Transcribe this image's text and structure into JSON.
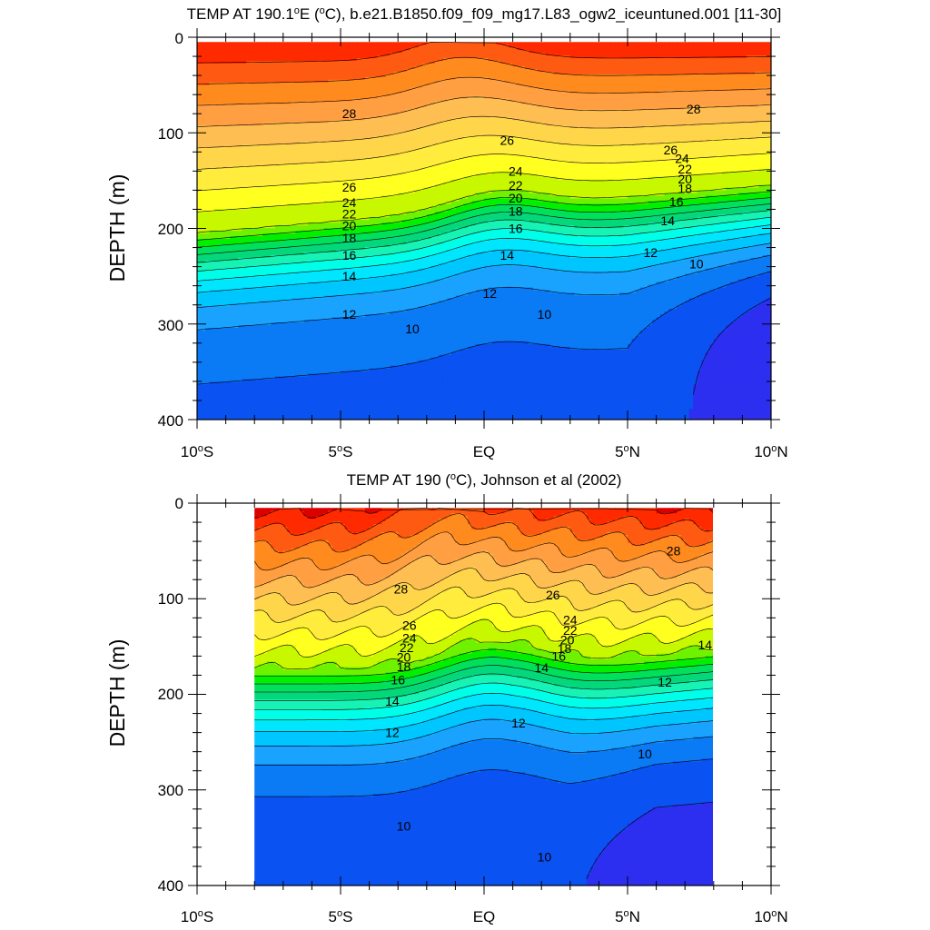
{
  "chart_data": [
    {
      "type": "contour",
      "panel": "model",
      "title_prefix": "TEMP AT 190.1",
      "title_sup": "o",
      "title_mid": "E (",
      "title_unit_sup": "o",
      "title_suffix": "C), b.e21.B1850.f09_f09_mg17.L83_ogw2_iceuntuned.001 [11-30]",
      "ylabel": "DEPTH (m)",
      "xlabel": "",
      "xlim": [
        -10,
        10
      ],
      "ylim": [
        400,
        0
      ],
      "x_ticks": [
        {
          "value": -10,
          "num": "10",
          "hemi": "S"
        },
        {
          "value": -5,
          "num": "5",
          "hemi": "S"
        },
        {
          "value": 0,
          "num": "EQ",
          "hemi": ""
        },
        {
          "value": 5,
          "num": "5",
          "hemi": "N"
        },
        {
          "value": 10,
          "num": "10",
          "hemi": "N"
        }
      ],
      "y_ticks": [
        0,
        100,
        200,
        300,
        400
      ],
      "x_data_range": [
        -10,
        10
      ],
      "y_data_range": [
        5,
        400
      ],
      "contour_interval": 1,
      "contour_labels": [
        {
          "text": "28",
          "x": -4.7,
          "y": 80
        },
        {
          "text": "26",
          "x": -4.7,
          "y": 157
        },
        {
          "text": "24",
          "x": -4.7,
          "y": 173
        },
        {
          "text": "22",
          "x": -4.7,
          "y": 185
        },
        {
          "text": "20",
          "x": -4.7,
          "y": 197
        },
        {
          "text": "18",
          "x": -4.7,
          "y": 210
        },
        {
          "text": "16",
          "x": -4.7,
          "y": 228
        },
        {
          "text": "14",
          "x": -4.7,
          "y": 250
        },
        {
          "text": "12",
          "x": -4.7,
          "y": 290
        },
        {
          "text": "10",
          "x": -2.5,
          "y": 305
        },
        {
          "text": "26",
          "x": 0.8,
          "y": 108
        },
        {
          "text": "24",
          "x": 1.1,
          "y": 140
        },
        {
          "text": "22",
          "x": 1.1,
          "y": 155
        },
        {
          "text": "20",
          "x": 1.1,
          "y": 168
        },
        {
          "text": "18",
          "x": 1.1,
          "y": 182
        },
        {
          "text": "16",
          "x": 1.1,
          "y": 200
        },
        {
          "text": "14",
          "x": 0.8,
          "y": 228
        },
        {
          "text": "12",
          "x": 0.2,
          "y": 268
        },
        {
          "text": "10",
          "x": 2.1,
          "y": 290
        },
        {
          "text": "28",
          "x": 7.3,
          "y": 75
        },
        {
          "text": "26",
          "x": 6.5,
          "y": 118
        },
        {
          "text": "24",
          "x": 6.9,
          "y": 127
        },
        {
          "text": "22",
          "x": 7.0,
          "y": 138
        },
        {
          "text": "20",
          "x": 7.0,
          "y": 148
        },
        {
          "text": "18",
          "x": 7.0,
          "y": 158
        },
        {
          "text": "16",
          "x": 6.7,
          "y": 172
        },
        {
          "text": "14",
          "x": 6.4,
          "y": 192
        },
        {
          "text": "12",
          "x": 5.8,
          "y": 225
        },
        {
          "text": "10",
          "x": 7.4,
          "y": 237
        }
      ]
    },
    {
      "type": "contour",
      "panel": "observations",
      "title_prefix": "TEMP AT 190 (",
      "title_sup": "o",
      "title_suffix": "C), Johnson et al (2002)",
      "ylabel": "DEPTH (m)",
      "xlabel": "",
      "xlim": [
        -10,
        10
      ],
      "ylim": [
        400,
        0
      ],
      "x_ticks": [
        {
          "value": -10,
          "num": "10",
          "hemi": "S"
        },
        {
          "value": -5,
          "num": "5",
          "hemi": "S"
        },
        {
          "value": 0,
          "num": "EQ",
          "hemi": ""
        },
        {
          "value": 5,
          "num": "5",
          "hemi": "N"
        },
        {
          "value": 10,
          "num": "10",
          "hemi": "N"
        }
      ],
      "y_ticks": [
        0,
        100,
        200,
        300,
        400
      ],
      "x_data_range": [
        -8,
        8
      ],
      "y_data_range": [
        5,
        400
      ],
      "contour_interval": 1,
      "contour_labels": [
        {
          "text": "28",
          "x": -2.9,
          "y": 90
        },
        {
          "text": "26",
          "x": -2.6,
          "y": 128
        },
        {
          "text": "24",
          "x": -2.6,
          "y": 141
        },
        {
          "text": "22",
          "x": -2.7,
          "y": 151
        },
        {
          "text": "20",
          "x": -2.8,
          "y": 161
        },
        {
          "text": "18",
          "x": -2.8,
          "y": 171
        },
        {
          "text": "16",
          "x": -3.0,
          "y": 185
        },
        {
          "text": "14",
          "x": -3.2,
          "y": 207
        },
        {
          "text": "12",
          "x": -3.2,
          "y": 240
        },
        {
          "text": "10",
          "x": -2.8,
          "y": 338
        },
        {
          "text": "26",
          "x": 2.4,
          "y": 96
        },
        {
          "text": "24",
          "x": 3.0,
          "y": 122
        },
        {
          "text": "22",
          "x": 3.0,
          "y": 133
        },
        {
          "text": "20",
          "x": 2.9,
          "y": 143
        },
        {
          "text": "18",
          "x": 2.8,
          "y": 152
        },
        {
          "text": "16",
          "x": 2.6,
          "y": 160
        },
        {
          "text": "14",
          "x": 2.0,
          "y": 172
        },
        {
          "text": "12",
          "x": 1.2,
          "y": 230
        },
        {
          "text": "10",
          "x": 2.1,
          "y": 370
        },
        {
          "text": "28",
          "x": 6.6,
          "y": 50
        },
        {
          "text": "14",
          "x": 7.7,
          "y": 148
        },
        {
          "text": "12",
          "x": 6.3,
          "y": 187
        },
        {
          "text": "10",
          "x": 5.6,
          "y": 262
        }
      ]
    }
  ]
}
